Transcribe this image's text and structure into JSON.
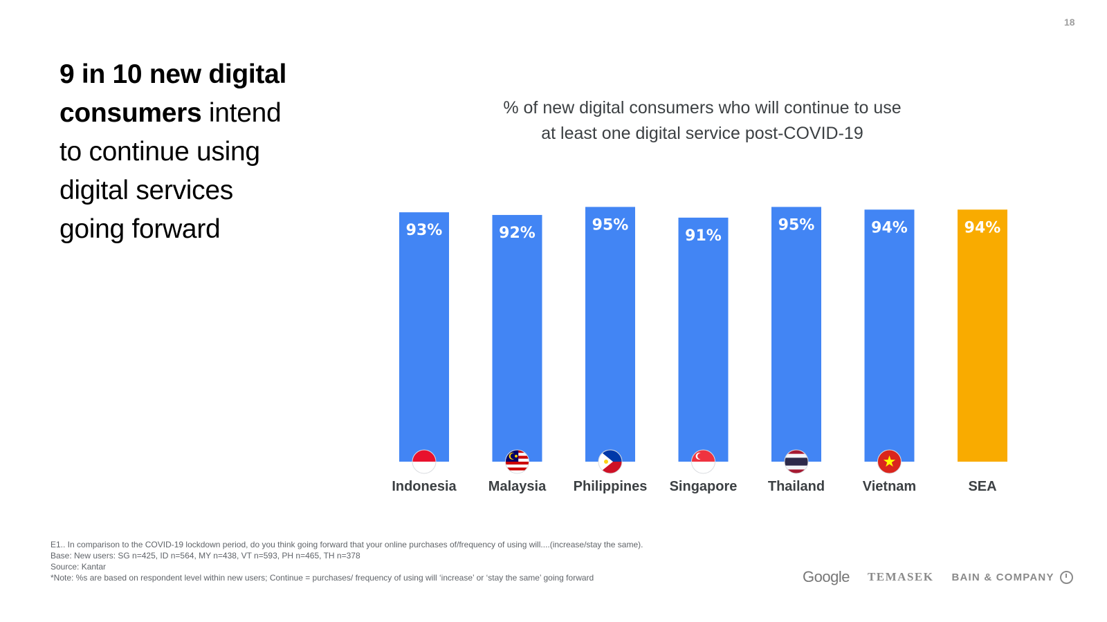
{
  "page": {
    "number": "18"
  },
  "headline": {
    "bold_line1": "9 in 10 new digital",
    "bold_word": "consumers",
    "rest1": " intend",
    "line3": "to continue using",
    "line4": "digital services",
    "line5": "going forward"
  },
  "chart_data": {
    "type": "bar",
    "title": "% of new digital consumers who will continue to use at least one digital service post-COVID-19",
    "title_lines": [
      "% of new digital consumers who will continue to use",
      "at least one digital service post-COVID-19"
    ],
    "categories": [
      "Indonesia",
      "Malaysia",
      "Philippines",
      "Singapore",
      "Thailand",
      "Vietnam",
      "SEA"
    ],
    "values": [
      93,
      92,
      95,
      91,
      95,
      94,
      94
    ],
    "value_labels": [
      "93%",
      "92%",
      "95%",
      "91%",
      "95%",
      "94%",
      "94%"
    ],
    "flag_icons": [
      "indonesia-flag-icon",
      "malaysia-flag-icon",
      "philippines-flag-icon",
      "singapore-flag-icon",
      "thailand-flag-icon",
      "vietnam-flag-icon",
      ""
    ],
    "colors": [
      "#4285f4",
      "#4285f4",
      "#4285f4",
      "#4285f4",
      "#4285f4",
      "#4285f4",
      "#f9ab00"
    ],
    "ylim": [
      0,
      100
    ],
    "grid": false,
    "xlabel": "",
    "ylabel": ""
  },
  "footnotes": [
    "E1.. In comparison to the COVID-19 lockdown period, do you think going forward that your online purchases of/frequency of using will....(increase/stay the same).",
    "Base: New users: SG n=425, ID n=564, MY n=438, VT n=593, PH n=465, TH n=378",
    "Source: Kantar",
    "*Note: %s are based on respondent level within new users; Continue = purchases/ frequency of using will ‘increase’ or ‘stay the same’ going forward"
  ],
  "logos": {
    "google": "Google",
    "temasek": "TEMASEK",
    "bain": "BAIN & COMPANY"
  }
}
